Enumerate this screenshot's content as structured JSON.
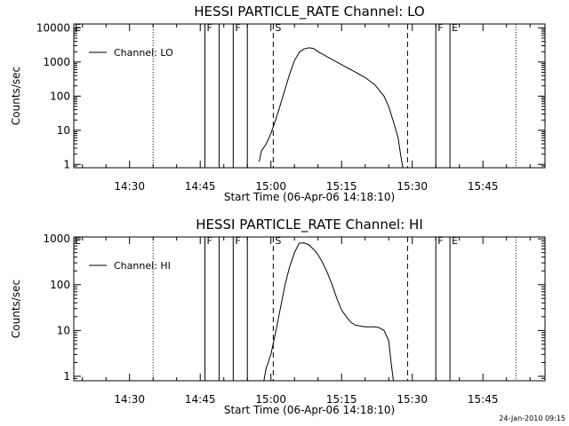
{
  "footer": {
    "date_stamp": "24-Jan-2010 09:15"
  },
  "chart_data": [
    {
      "type": "line",
      "title": "HESSI PARTICLE_RATE Channel: LO",
      "xlabel": "Start Time (06-Apr-06 14:18:10)",
      "ylabel": "Counts/sec",
      "x_tick_labels": [
        "14:30",
        "14:45",
        "15:00",
        "15:15",
        "15:30",
        "15:45"
      ],
      "y_tick_labels": [
        "1",
        "10",
        "100",
        "1000",
        "10000"
      ],
      "y_tick_values": [
        1,
        10,
        100,
        1000,
        10000
      ],
      "y_scale": "log",
      "xlim": [
        "14:18:10",
        "15:58:10"
      ],
      "ylim": [
        0.8,
        13000
      ],
      "legend": {
        "entries": [
          "Channel: LO"
        ],
        "position": "top-left"
      },
      "series": [
        {
          "name": "Channel: LO",
          "x": [
            "14:57:30",
            "14:58:00",
            "14:59:00",
            "15:00:00",
            "15:01:00",
            "15:02:00",
            "15:03:00",
            "15:04:00",
            "15:05:00",
            "15:06:00",
            "15:07:00",
            "15:08:00",
            "15:09:00",
            "15:10:00",
            "15:11:00",
            "15:12:00",
            "15:14:00",
            "15:16:00",
            "15:18:00",
            "15:20:00",
            "15:22:00",
            "15:24:00",
            "15:25:00",
            "15:26:00",
            "15:27:00",
            "15:27:30",
            "15:28:00"
          ],
          "y": [
            1.2,
            2.5,
            4,
            8,
            20,
            55,
            160,
            450,
            1100,
            1900,
            2400,
            2600,
            2500,
            2000,
            1700,
            1400,
            1000,
            700,
            500,
            350,
            220,
            100,
            50,
            18,
            6,
            2,
            0.8
          ]
        }
      ],
      "vertical_markers": [
        {
          "time": "14:35:00",
          "style": "dotted",
          "label": ""
        },
        {
          "time": "14:46:00",
          "style": "solid",
          "label": "F"
        },
        {
          "time": "14:49:00",
          "style": "solid",
          "label": ""
        },
        {
          "time": "14:52:00",
          "style": "solid",
          "label": "F"
        },
        {
          "time": "14:55:00",
          "style": "solid",
          "label": ""
        },
        {
          "time": "15:00:30",
          "style": "dashed",
          "label": "S"
        },
        {
          "time": "15:29:00",
          "style": "dashed",
          "label": ""
        },
        {
          "time": "15:35:00",
          "style": "solid",
          "label": "F"
        },
        {
          "time": "15:38:00",
          "style": "solid",
          "label": "E"
        },
        {
          "time": "15:52:00",
          "style": "dotted",
          "label": ""
        }
      ],
      "corner_label": "E"
    },
    {
      "type": "line",
      "title": "HESSI PARTICLE_RATE Channel: HI",
      "xlabel": "Start Time (06-Apr-06 14:18:10)",
      "ylabel": "Counts/sec",
      "x_tick_labels": [
        "14:30",
        "14:45",
        "15:00",
        "15:15",
        "15:30",
        "15:45"
      ],
      "y_tick_labels": [
        "1",
        "10",
        "100",
        "1000"
      ],
      "y_tick_values": [
        1,
        10,
        100,
        1000
      ],
      "y_scale": "log",
      "xlim": [
        "14:18:10",
        "15:58:10"
      ],
      "ylim": [
        0.8,
        1100
      ],
      "legend": {
        "entries": [
          "Channel: HI"
        ],
        "position": "top-left"
      },
      "series": [
        {
          "name": "Channel: HI",
          "x": [
            "14:58:30",
            "14:59:00",
            "15:00:00",
            "15:01:00",
            "15:02:00",
            "15:03:00",
            "15:04:00",
            "15:05:00",
            "15:06:00",
            "15:07:00",
            "15:08:00",
            "15:09:00",
            "15:10:00",
            "15:11:00",
            "15:12:00",
            "15:13:00",
            "15:14:00",
            "15:15:00",
            "15:16:00",
            "15:17:00",
            "15:18:00",
            "15:19:00",
            "15:20:00",
            "15:21:00",
            "15:22:00",
            "15:23:00",
            "15:24:00",
            "15:25:00",
            "15:25:30",
            "15:26:00"
          ],
          "y": [
            0.8,
            1.5,
            3,
            9,
            30,
            100,
            250,
            500,
            800,
            820,
            750,
            600,
            450,
            300,
            180,
            100,
            50,
            28,
            20,
            15,
            13,
            12.5,
            12,
            12,
            12,
            11.5,
            10,
            6,
            2,
            0.8
          ]
        }
      ],
      "vertical_markers": [
        {
          "time": "14:35:00",
          "style": "dotted",
          "label": ""
        },
        {
          "time": "14:46:00",
          "style": "solid",
          "label": "F"
        },
        {
          "time": "14:49:00",
          "style": "solid",
          "label": ""
        },
        {
          "time": "14:52:00",
          "style": "solid",
          "label": "F"
        },
        {
          "time": "14:55:00",
          "style": "solid",
          "label": ""
        },
        {
          "time": "15:00:30",
          "style": "dashed",
          "label": "S"
        },
        {
          "time": "15:29:00",
          "style": "dashed",
          "label": ""
        },
        {
          "time": "15:35:00",
          "style": "solid",
          "label": "F"
        },
        {
          "time": "15:38:00",
          "style": "solid",
          "label": "E"
        },
        {
          "time": "15:52:00",
          "style": "dotted",
          "label": ""
        }
      ],
      "corner_label": "E"
    }
  ]
}
